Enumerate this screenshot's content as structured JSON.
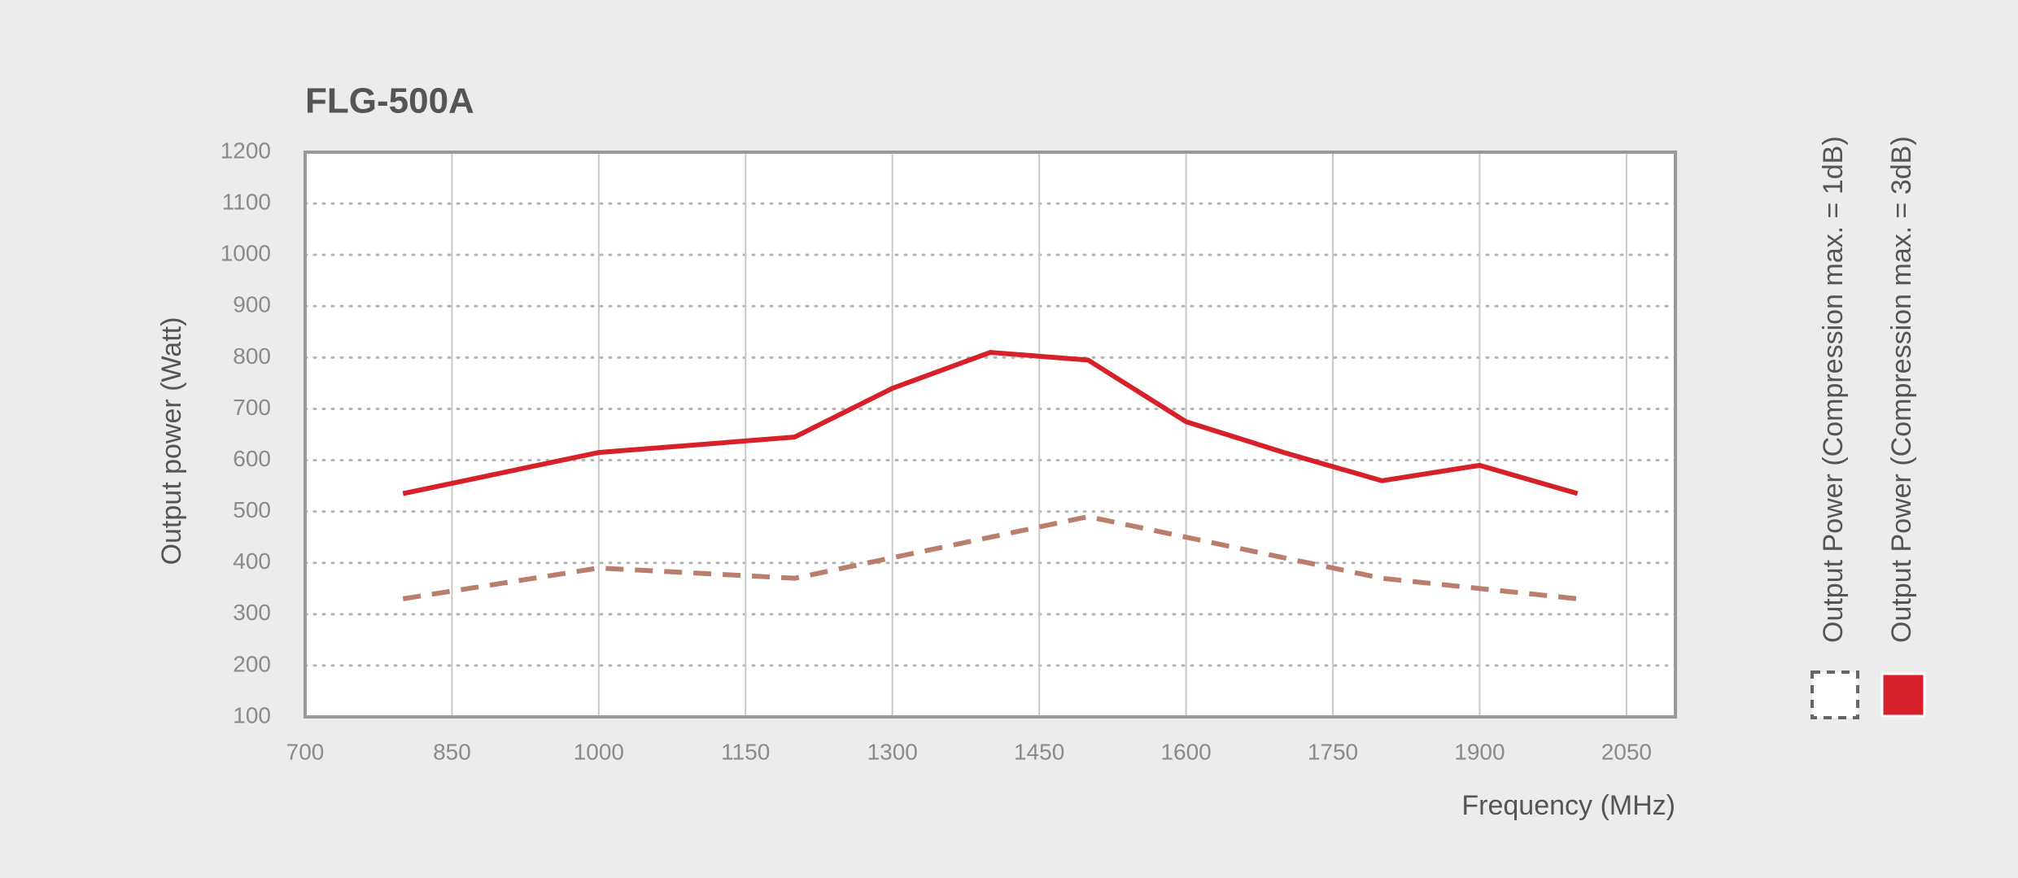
{
  "chart_data": {
    "type": "line",
    "title": "FLG-500A",
    "x_label": "Frequency (MHz)",
    "y_label": "Output power (Watt)",
    "x": [
      800,
      1000,
      1200,
      1300,
      1400,
      1500,
      1600,
      1700,
      1800,
      1900,
      2000
    ],
    "series": [
      {
        "name": "Output Power (Compression max. = 1dB)",
        "color": "#b97f6c",
        "style": "dashed",
        "values": [
          330,
          390,
          370,
          410,
          450,
          490,
          450,
          410,
          370,
          350,
          330
        ]
      },
      {
        "name": "Output Power (Compression max. = 3dB)",
        "color": "#d7212a",
        "style": "solid",
        "values": [
          535,
          615,
          645,
          740,
          810,
          795,
          675,
          615,
          560,
          590,
          535
        ]
      }
    ],
    "xlim": [
      700,
      2100
    ],
    "xticks": [
      700,
      850,
      1000,
      1150,
      1300,
      1450,
      1600,
      1750,
      1900,
      2050
    ],
    "ylim": [
      100,
      1200
    ],
    "yticks": [
      100,
      200,
      300,
      400,
      500,
      600,
      700,
      800,
      900,
      1000,
      1100,
      1200
    ],
    "grid": true,
    "legend": "right"
  }
}
